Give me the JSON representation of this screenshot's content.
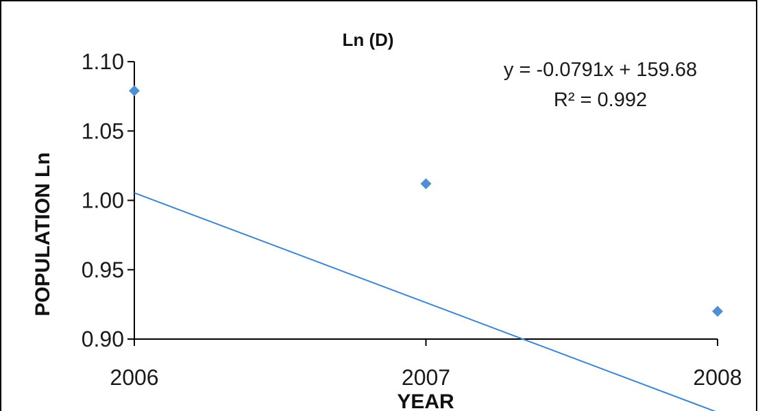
{
  "chart_data": {
    "type": "scatter",
    "title": "Ln (D)",
    "xlabel": "YEAR",
    "ylabel": "POPULATION Ln",
    "x": [
      2006,
      2007,
      2008
    ],
    "y": [
      1.079,
      1.012,
      0.92
    ],
    "xlim": [
      2006,
      2008
    ],
    "ylim": [
      0.9,
      1.1
    ],
    "x_ticks": [
      "2006",
      "2007",
      "2008"
    ],
    "y_ticks": [
      "0.90",
      "0.95",
      "1.00",
      "1.05",
      "1.10"
    ],
    "grid": false,
    "legend": "none",
    "trendline": {
      "type": "linear",
      "slope": -0.0791,
      "intercept": 159.68,
      "equation": "y = -0.0791x + 159.68",
      "r_squared": "R² = 0.992"
    },
    "colors": {
      "marker": "#4f8fd6",
      "trendline": "#3c86cf",
      "axis": "#000000"
    }
  }
}
